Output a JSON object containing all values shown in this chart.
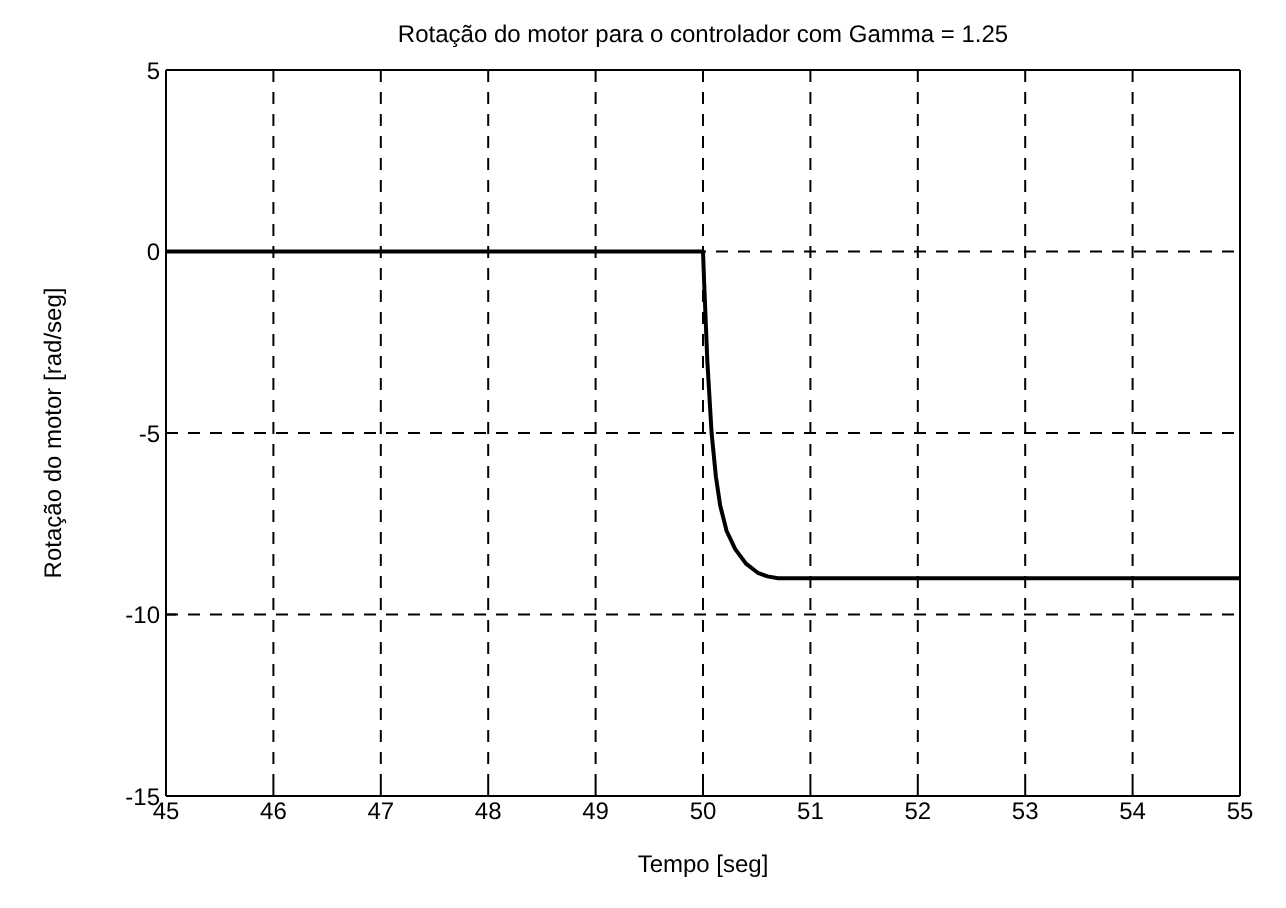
{
  "chart_data": {
    "type": "line",
    "title": "Rotação do motor para o controlador com Gamma = 1.25",
    "xlabel": "Tempo [seg]",
    "ylabel": "Rotação do motor [rad/seg]",
    "x": [
      45,
      50,
      50.01,
      50.04,
      50.08,
      50.12,
      50.16,
      50.22,
      50.3,
      50.4,
      50.51,
      50.6,
      50.7,
      55
    ],
    "series": [
      {
        "color": "#000000",
        "values": [
          0,
          0,
          -0.8,
          -3,
          -5,
          -6.2,
          -7,
          -7.7,
          -8.2,
          -8.6,
          -8.85,
          -8.95,
          -9,
          -9
        ]
      }
    ],
    "xlim": [
      45,
      55
    ],
    "xticks": [
      45,
      46,
      47,
      48,
      49,
      50,
      51,
      52,
      53,
      54,
      55
    ],
    "ylim": [
      -15,
      5
    ],
    "yticks": [
      -15,
      -10,
      -5,
      0,
      5
    ],
    "grid": true,
    "marker": "none",
    "line_style": "solid"
  }
}
